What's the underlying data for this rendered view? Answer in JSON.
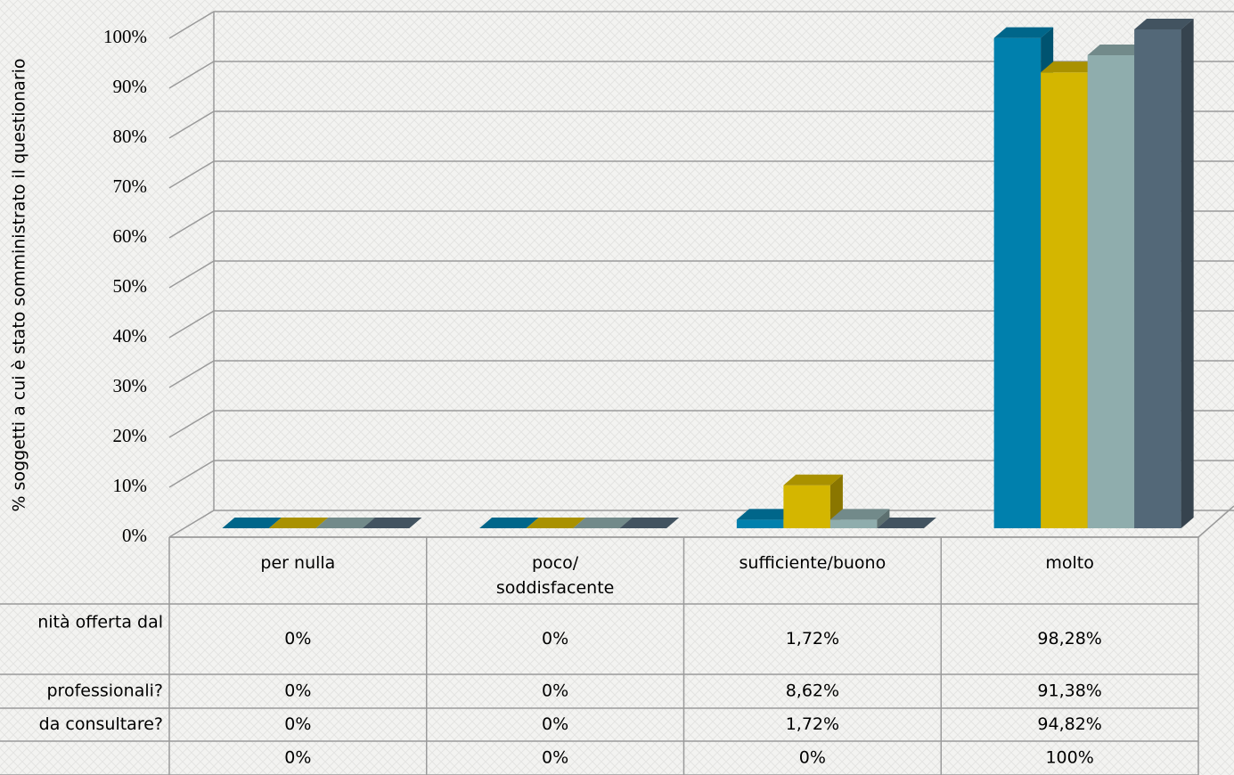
{
  "chart_data": {
    "type": "bar3d",
    "y_label": "% soggetti a cui è stato somministrato il questionario",
    "categories": [
      "per nulla",
      "poco/\nsoddisfacente",
      "sufficiente/buono",
      "molto"
    ],
    "series": [
      {
        "name": "nità offerta dal",
        "color": "#0080ad",
        "values": [
          0,
          0,
          1.72,
          98.28
        ],
        "value_labels": [
          "0%",
          "0%",
          "1,72%",
          "98,28%"
        ]
      },
      {
        "name": "professionali?",
        "color": "#d4b600",
        "values": [
          0,
          0,
          8.62,
          91.38
        ],
        "value_labels": [
          "0%",
          "0%",
          "8,62%",
          "91,38%"
        ]
      },
      {
        "name": "da consultare?",
        "color": "#8fadad",
        "values": [
          0,
          0,
          1.72,
          94.82
        ],
        "value_labels": [
          "0%",
          "0%",
          "1,72%",
          "94,82%"
        ]
      },
      {
        "name": null,
        "color": "#536878",
        "values": [
          0,
          0,
          0,
          100
        ],
        "value_labels": [
          "0%",
          "0%",
          "0%",
          "100%"
        ]
      }
    ],
    "ylim": [
      0,
      100
    ],
    "yticks": [
      {
        "value": 0,
        "label": "0%"
      },
      {
        "value": 10,
        "label": "10%"
      },
      {
        "value": 20,
        "label": "20%"
      },
      {
        "value": 30,
        "label": "30%"
      },
      {
        "value": 40,
        "label": "40%"
      },
      {
        "value": 50,
        "label": "50%"
      },
      {
        "value": 60,
        "label": "60%"
      },
      {
        "value": 70,
        "label": "70%"
      },
      {
        "value": 80,
        "label": "80%"
      },
      {
        "value": 90,
        "label": "90%"
      },
      {
        "value": 100,
        "label": "100%"
      }
    ],
    "grid": true
  }
}
